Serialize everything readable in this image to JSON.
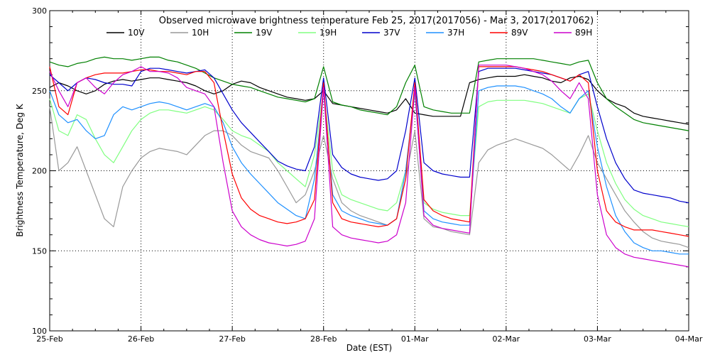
{
  "chart_data": {
    "type": "line",
    "title": "Observed microwave brightness temperature Feb 25, 2017(2017056) - Mar  3, 2017(2017062)",
    "xlabel": "Date (EST)",
    "ylabel": "Brightness Temperature, Deg K",
    "ylim": [
      100,
      300
    ],
    "xlim": [
      0,
      7
    ],
    "y_ticks": [
      100,
      150,
      200,
      250,
      300
    ],
    "x_ticks": [
      {
        "value": 0,
        "label": "25-Feb"
      },
      {
        "value": 1,
        "label": "26-Feb"
      },
      {
        "value": 2,
        "label": "27-Feb"
      },
      {
        "value": 3,
        "label": "28-Feb"
      },
      {
        "value": 4,
        "label": "01-Mar"
      },
      {
        "value": 5,
        "label": "02-Mar"
      },
      {
        "value": 6,
        "label": "03-Mar"
      },
      {
        "value": 7,
        "label": "04-Mar"
      }
    ],
    "grid": true,
    "legend_position": "top",
    "x": [
      0.0,
      0.1,
      0.2,
      0.3,
      0.4,
      0.5,
      0.6,
      0.7,
      0.8,
      0.9,
      1.0,
      1.1,
      1.2,
      1.3,
      1.4,
      1.5,
      1.6,
      1.7,
      1.8,
      1.9,
      2.0,
      2.1,
      2.2,
      2.3,
      2.4,
      2.5,
      2.6,
      2.7,
      2.8,
      2.9,
      3.0,
      3.1,
      3.2,
      3.3,
      3.4,
      3.5,
      3.6,
      3.7,
      3.8,
      3.9,
      4.0,
      4.1,
      4.2,
      4.3,
      4.4,
      4.5,
      4.6,
      4.7,
      4.8,
      4.9,
      5.0,
      5.1,
      5.2,
      5.3,
      5.4,
      5.5,
      5.6,
      5.7,
      5.8,
      5.9,
      6.0,
      6.1,
      6.2,
      6.3,
      6.4,
      6.5,
      6.6,
      6.7,
      6.8,
      6.9,
      7.0
    ],
    "series": [
      {
        "name": "10V",
        "color": "#000000",
        "values": [
          252,
          255,
          253,
          250,
          248,
          250,
          254,
          256,
          257,
          256,
          257,
          258,
          258,
          257,
          256,
          255,
          253,
          250,
          248,
          250,
          254,
          256,
          255,
          252,
          250,
          248,
          246,
          245,
          244,
          245,
          250,
          242,
          241,
          240,
          239,
          238,
          237,
          236,
          238,
          245,
          236,
          235,
          234,
          234,
          234,
          234,
          255,
          257,
          258,
          259,
          259,
          259,
          260,
          259,
          258,
          256,
          255,
          258,
          259,
          257,
          250,
          245,
          242,
          240,
          236,
          234,
          233,
          232,
          231,
          230,
          229
        ]
      },
      {
        "name": "10H",
        "color": "#999999",
        "values": [
          240,
          200,
          205,
          215,
          200,
          185,
          170,
          165,
          190,
          200,
          208,
          212,
          214,
          213,
          212,
          210,
          216,
          222,
          225,
          225,
          222,
          216,
          212,
          210,
          208,
          200,
          190,
          180,
          185,
          200,
          222,
          195,
          180,
          175,
          172,
          170,
          168,
          166,
          170,
          195,
          225,
          170,
          165,
          164,
          162,
          161,
          160,
          205,
          213,
          216,
          218,
          220,
          218,
          216,
          214,
          210,
          205,
          200,
          210,
          222,
          205,
          195,
          185,
          175,
          168,
          162,
          158,
          156,
          155,
          154,
          152
        ]
      },
      {
        "name": "19V",
        "color": "#008000",
        "values": [
          268,
          266,
          265,
          267,
          268,
          270,
          271,
          270,
          270,
          269,
          270,
          271,
          271,
          269,
          268,
          266,
          264,
          261,
          258,
          256,
          254,
          253,
          252,
          250,
          248,
          246,
          245,
          244,
          243,
          245,
          265,
          243,
          241,
          240,
          238,
          237,
          236,
          235,
          240,
          255,
          266,
          240,
          238,
          237,
          236,
          236,
          236,
          268,
          269,
          270,
          270,
          270,
          270,
          270,
          269,
          268,
          267,
          266,
          268,
          269,
          255,
          245,
          240,
          236,
          232,
          230,
          229,
          228,
          227,
          226,
          225
        ]
      },
      {
        "name": "19H",
        "color": "#80ff80",
        "values": [
          245,
          225,
          222,
          235,
          232,
          220,
          210,
          205,
          215,
          225,
          232,
          236,
          238,
          238,
          237,
          236,
          238,
          240,
          238,
          232,
          225,
          222,
          220,
          216,
          212,
          205,
          200,
          195,
          190,
          210,
          250,
          200,
          185,
          182,
          180,
          178,
          176,
          175,
          180,
          200,
          248,
          180,
          176,
          174,
          173,
          172,
          172,
          240,
          243,
          244,
          244,
          244,
          244,
          243,
          242,
          240,
          238,
          236,
          245,
          248,
          225,
          205,
          192,
          182,
          176,
          172,
          170,
          168,
          167,
          166,
          165
        ]
      },
      {
        "name": "37V",
        "color": "#0000cc",
        "values": [
          260,
          255,
          250,
          255,
          258,
          257,
          255,
          254,
          254,
          253,
          262,
          264,
          264,
          263,
          262,
          261,
          262,
          263,
          258,
          248,
          238,
          230,
          224,
          218,
          212,
          206,
          203,
          201,
          200,
          215,
          258,
          210,
          202,
          198,
          196,
          195,
          194,
          195,
          200,
          225,
          258,
          205,
          200,
          198,
          197,
          196,
          196,
          262,
          264,
          264,
          264,
          264,
          263,
          262,
          261,
          260,
          258,
          256,
          260,
          262,
          240,
          220,
          205,
          195,
          188,
          186,
          185,
          184,
          183,
          181,
          180
        ]
      },
      {
        "name": "37H",
        "color": "#1e90ff",
        "values": [
          250,
          235,
          230,
          232,
          225,
          220,
          222,
          235,
          240,
          238,
          240,
          242,
          243,
          242,
          240,
          238,
          240,
          242,
          240,
          230,
          215,
          205,
          198,
          192,
          186,
          180,
          176,
          172,
          170,
          195,
          250,
          185,
          175,
          172,
          170,
          168,
          167,
          166,
          170,
          200,
          250,
          175,
          170,
          168,
          167,
          166,
          166,
          250,
          252,
          253,
          253,
          253,
          252,
          250,
          248,
          245,
          240,
          236,
          245,
          250,
          215,
          190,
          172,
          162,
          155,
          152,
          150,
          150,
          149,
          148,
          148
        ]
      },
      {
        "name": "89V",
        "color": "#ff0000",
        "values": [
          265,
          240,
          235,
          255,
          258,
          260,
          261,
          261,
          261,
          262,
          263,
          263,
          262,
          262,
          261,
          260,
          262,
          262,
          255,
          225,
          198,
          183,
          176,
          172,
          170,
          168,
          167,
          168,
          170,
          182,
          255,
          180,
          170,
          168,
          167,
          166,
          165,
          166,
          170,
          195,
          255,
          182,
          175,
          172,
          170,
          169,
          168,
          265,
          265,
          265,
          265,
          265,
          264,
          263,
          262,
          260,
          258,
          256,
          260,
          255,
          200,
          175,
          168,
          165,
          163,
          163,
          163,
          162,
          161,
          160,
          159
        ]
      },
      {
        "name": "89H",
        "color": "#cc00cc",
        "values": [
          262,
          250,
          240,
          255,
          258,
          252,
          248,
          255,
          260,
          262,
          265,
          262,
          262,
          261,
          258,
          252,
          250,
          248,
          240,
          205,
          175,
          165,
          160,
          157,
          155,
          154,
          153,
          154,
          156,
          170,
          252,
          165,
          160,
          158,
          157,
          156,
          155,
          156,
          160,
          180,
          252,
          172,
          166,
          164,
          163,
          162,
          161,
          266,
          266,
          266,
          266,
          265,
          264,
          262,
          260,
          256,
          250,
          245,
          255,
          245,
          185,
          160,
          152,
          148,
          146,
          145,
          144,
          143,
          142,
          141,
          140
        ]
      }
    ]
  }
}
